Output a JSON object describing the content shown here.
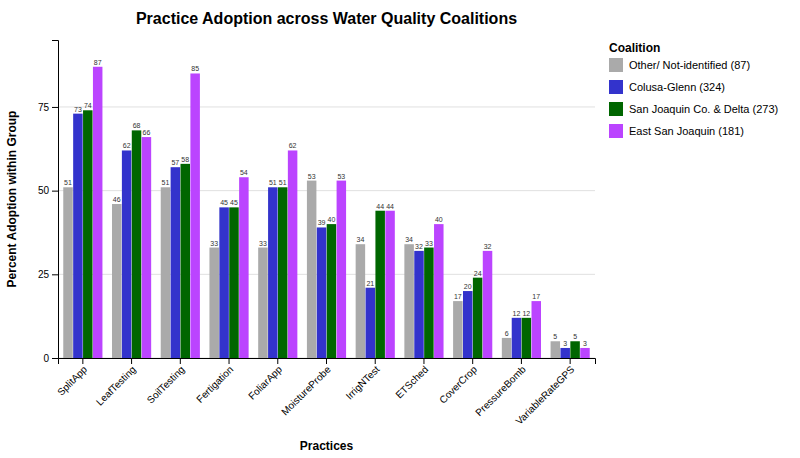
{
  "chart_data": {
    "type": "bar",
    "title": "Practice Adoption across Water Quality Coalitions",
    "xlabel": "Practices",
    "ylabel": "Percent Adoption within Group",
    "categories": [
      "SplitApp",
      "LeafTesting",
      "SoilTesting",
      "Fertigation",
      "FoliarApp",
      "MoistureProbe",
      "IrrigNTest",
      "ETSched",
      "CoverCrop",
      "PressureBomb",
      "VariableRateGPS"
    ],
    "series": [
      {
        "name": "Other/ Not-identified (87)",
        "color": "#aaaaaa",
        "values": [
          51,
          46,
          51,
          33,
          33,
          53,
          34,
          34,
          17,
          6,
          5
        ]
      },
      {
        "name": "Colusa-Glenn (324)",
        "color": "#3333cc",
        "values": [
          73,
          62,
          57,
          45,
          51,
          39,
          21,
          32,
          20,
          12,
          3
        ]
      },
      {
        "name": "San Joaquin Co. & Delta (273)",
        "color": "#006600",
        "values": [
          74,
          68,
          58,
          45,
          51,
          40,
          44,
          33,
          24,
          12,
          5
        ]
      },
      {
        "name": "East San Joaquin (181)",
        "color": "#bb44ff",
        "values": [
          87,
          66,
          85,
          54,
          62,
          53,
          44,
          40,
          32,
          17,
          3
        ]
      }
    ],
    "ylim": [
      0,
      95
    ],
    "yticks": [
      0,
      25,
      50,
      75
    ],
    "grid": true,
    "data_labels": true,
    "legend": "right",
    "legend_title": "Coalition"
  }
}
